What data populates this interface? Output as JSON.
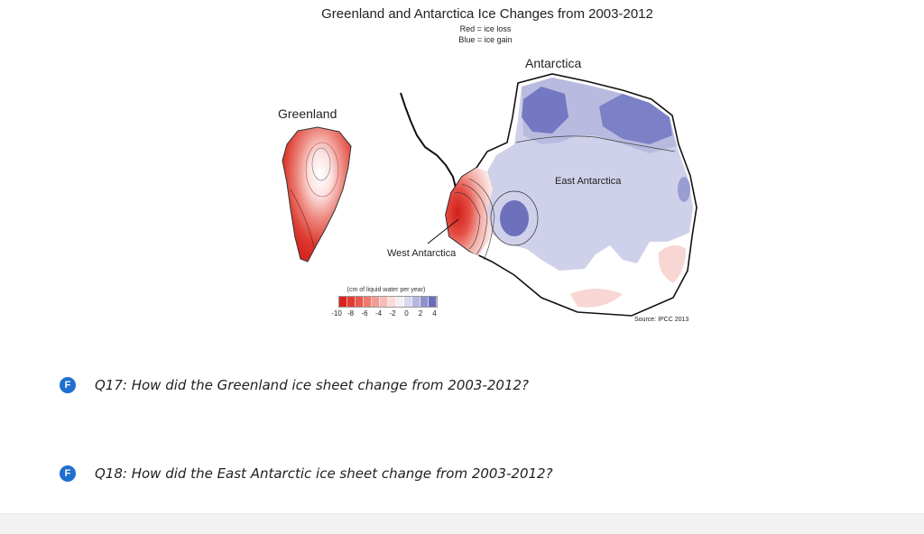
{
  "figure": {
    "title": "Greenland and Antarctica Ice Changes from 2003-2012",
    "subtitle_red": "Red = ice loss",
    "subtitle_blue": "Blue = ice gain",
    "labels": {
      "greenland": "Greenland",
      "antarctica": "Antarctica",
      "east_antarctica": "East Antarctica",
      "west_antarctica": "West Antarctica"
    },
    "source": "Source: IPCC 2013",
    "legend": {
      "unit": "(cm of liquid water per year)",
      "ticks": [
        "-10",
        "-8",
        "-6",
        "-4",
        "-2",
        "0",
        "2",
        "4"
      ],
      "colors": [
        "#d9231f",
        "#e23b31",
        "#e85a4e",
        "#ed7a70",
        "#f29c94",
        "#f6bdb6",
        "#fadcd7",
        "#f4f0f2",
        "#d8d8ee",
        "#b7b8e0",
        "#8f91cc",
        "#6a6db8"
      ]
    },
    "colors": {
      "ice_loss": "#d92b24",
      "ice_gain": "#6f73bf"
    }
  },
  "questions": [
    {
      "badge": "F",
      "text": "Q17: How did the Greenland ice sheet change from 2003-2012?"
    },
    {
      "badge": "F",
      "text": "Q18: How did the East Antarctic ice sheet change from 2003-2012?"
    }
  ]
}
